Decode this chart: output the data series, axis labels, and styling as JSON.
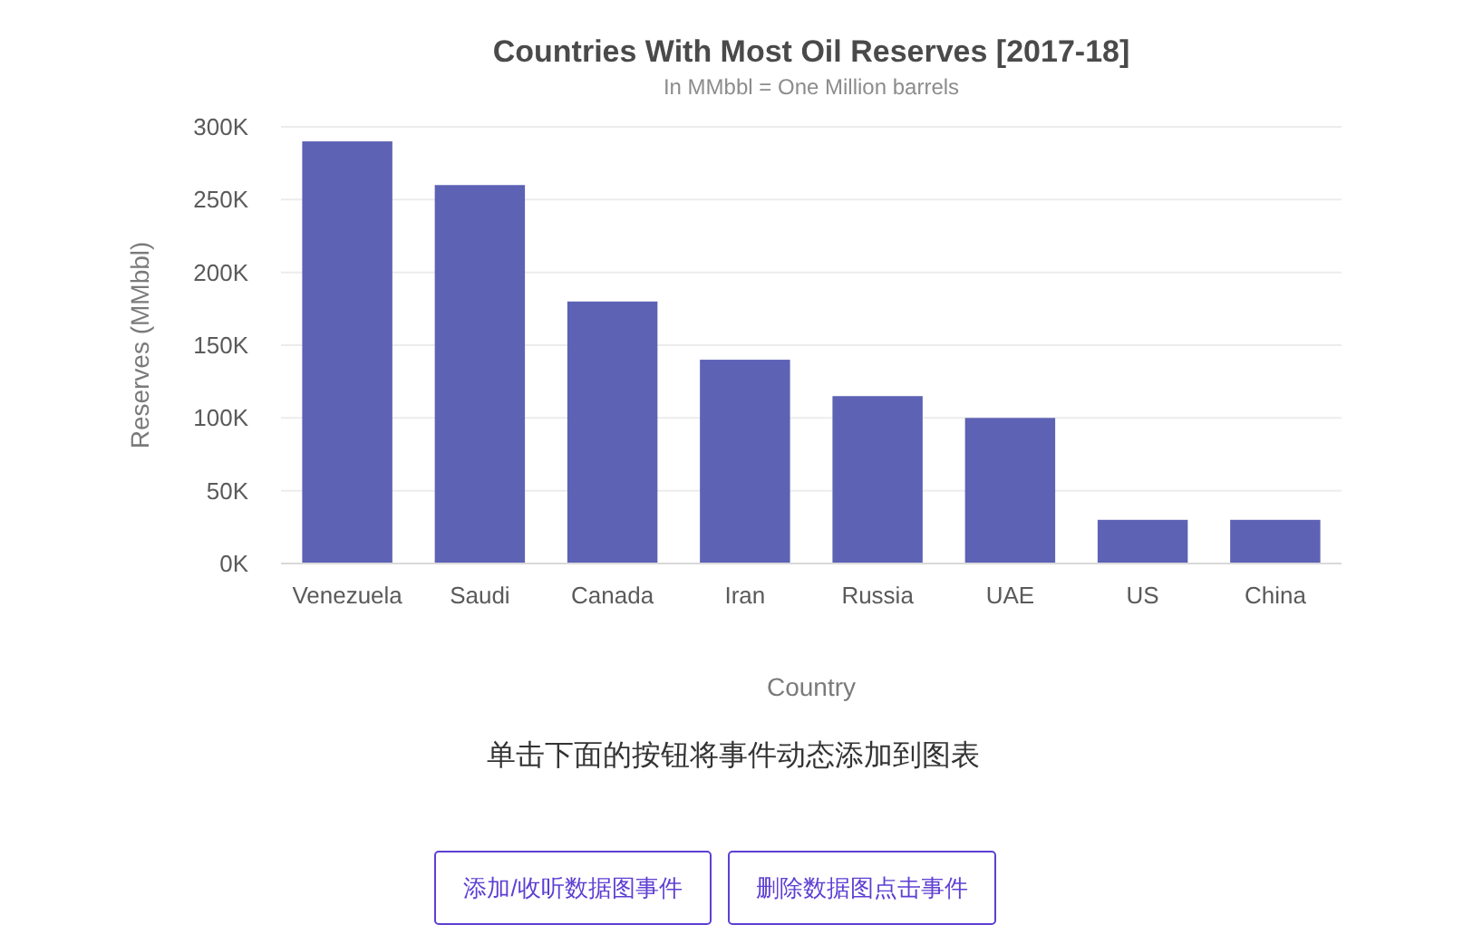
{
  "chart_data": {
    "type": "bar",
    "title": "Countries With Most Oil Reserves [2017-18]",
    "subtitle": "In MMbbl = One Million barrels",
    "xlabel": "Country",
    "ylabel": "Reserves (MMbbl)",
    "categories": [
      "Venezuela",
      "Saudi",
      "Canada",
      "Iran",
      "Russia",
      "UAE",
      "US",
      "China"
    ],
    "values": [
      290000,
      260000,
      180000,
      140000,
      115000,
      100000,
      30000,
      30000
    ],
    "color": "#5d62b5",
    "ylim": [
      0,
      300000
    ],
    "yticks": [
      {
        "value": 0,
        "label": "0K"
      },
      {
        "value": 50000,
        "label": "50K"
      },
      {
        "value": 100000,
        "label": "100K"
      },
      {
        "value": 150000,
        "label": "150K"
      },
      {
        "value": 200000,
        "label": "200K"
      },
      {
        "value": 250000,
        "label": "250K"
      },
      {
        "value": 300000,
        "label": "300K"
      }
    ],
    "grid": "y",
    "annotations": [
      "单击下面的按钮将事件动态添加到图表",
      "添加/收听数据图事件",
      "删除数据图点击事件"
    ]
  }
}
